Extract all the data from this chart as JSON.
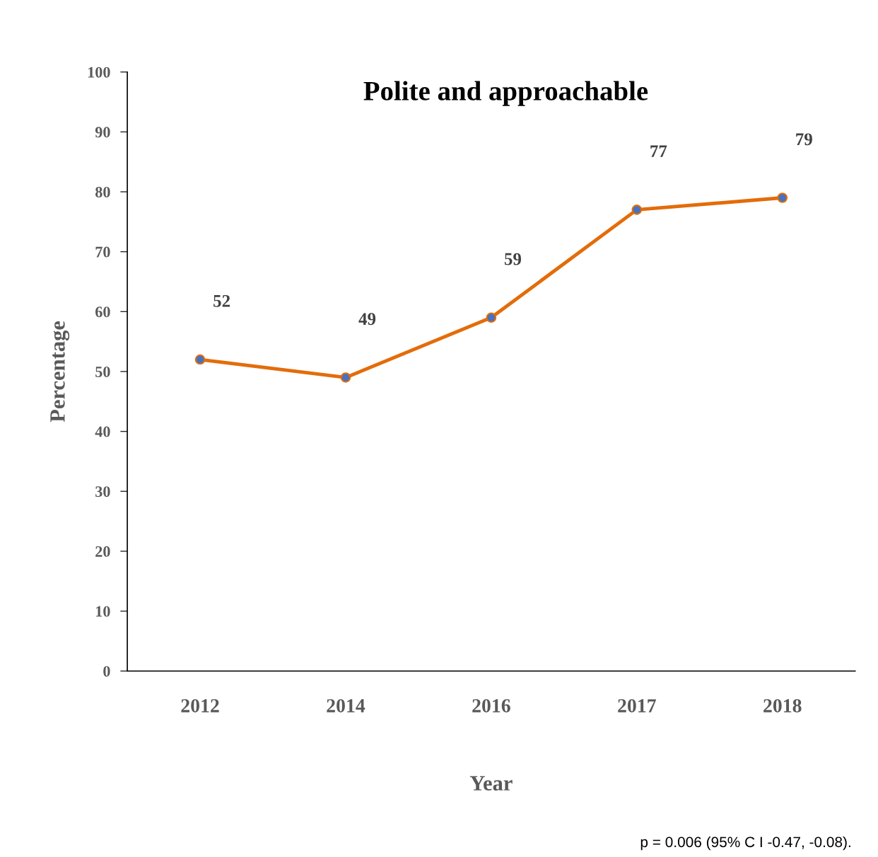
{
  "chart_data": {
    "type": "line",
    "title": "Polite and approachable",
    "xlabel": "Year",
    "ylabel": "Percentage",
    "categories": [
      "2012",
      "2014",
      "2016",
      "2017",
      "2018"
    ],
    "series": [
      {
        "color": "#e36c0a",
        "values": [
          52,
          49,
          59,
          77,
          79
        ]
      }
    ],
    "ylim": [
      0,
      100
    ],
    "yticks": [
      0,
      10,
      20,
      30,
      40,
      50,
      60,
      70,
      80,
      90,
      100
    ],
    "data_labels": true,
    "marker": "circle",
    "line_style": "solid",
    "grid": false,
    "legend": false,
    "annotations": [
      "p = 0.006 (95% C I -0.47, -0.08)."
    ]
  }
}
